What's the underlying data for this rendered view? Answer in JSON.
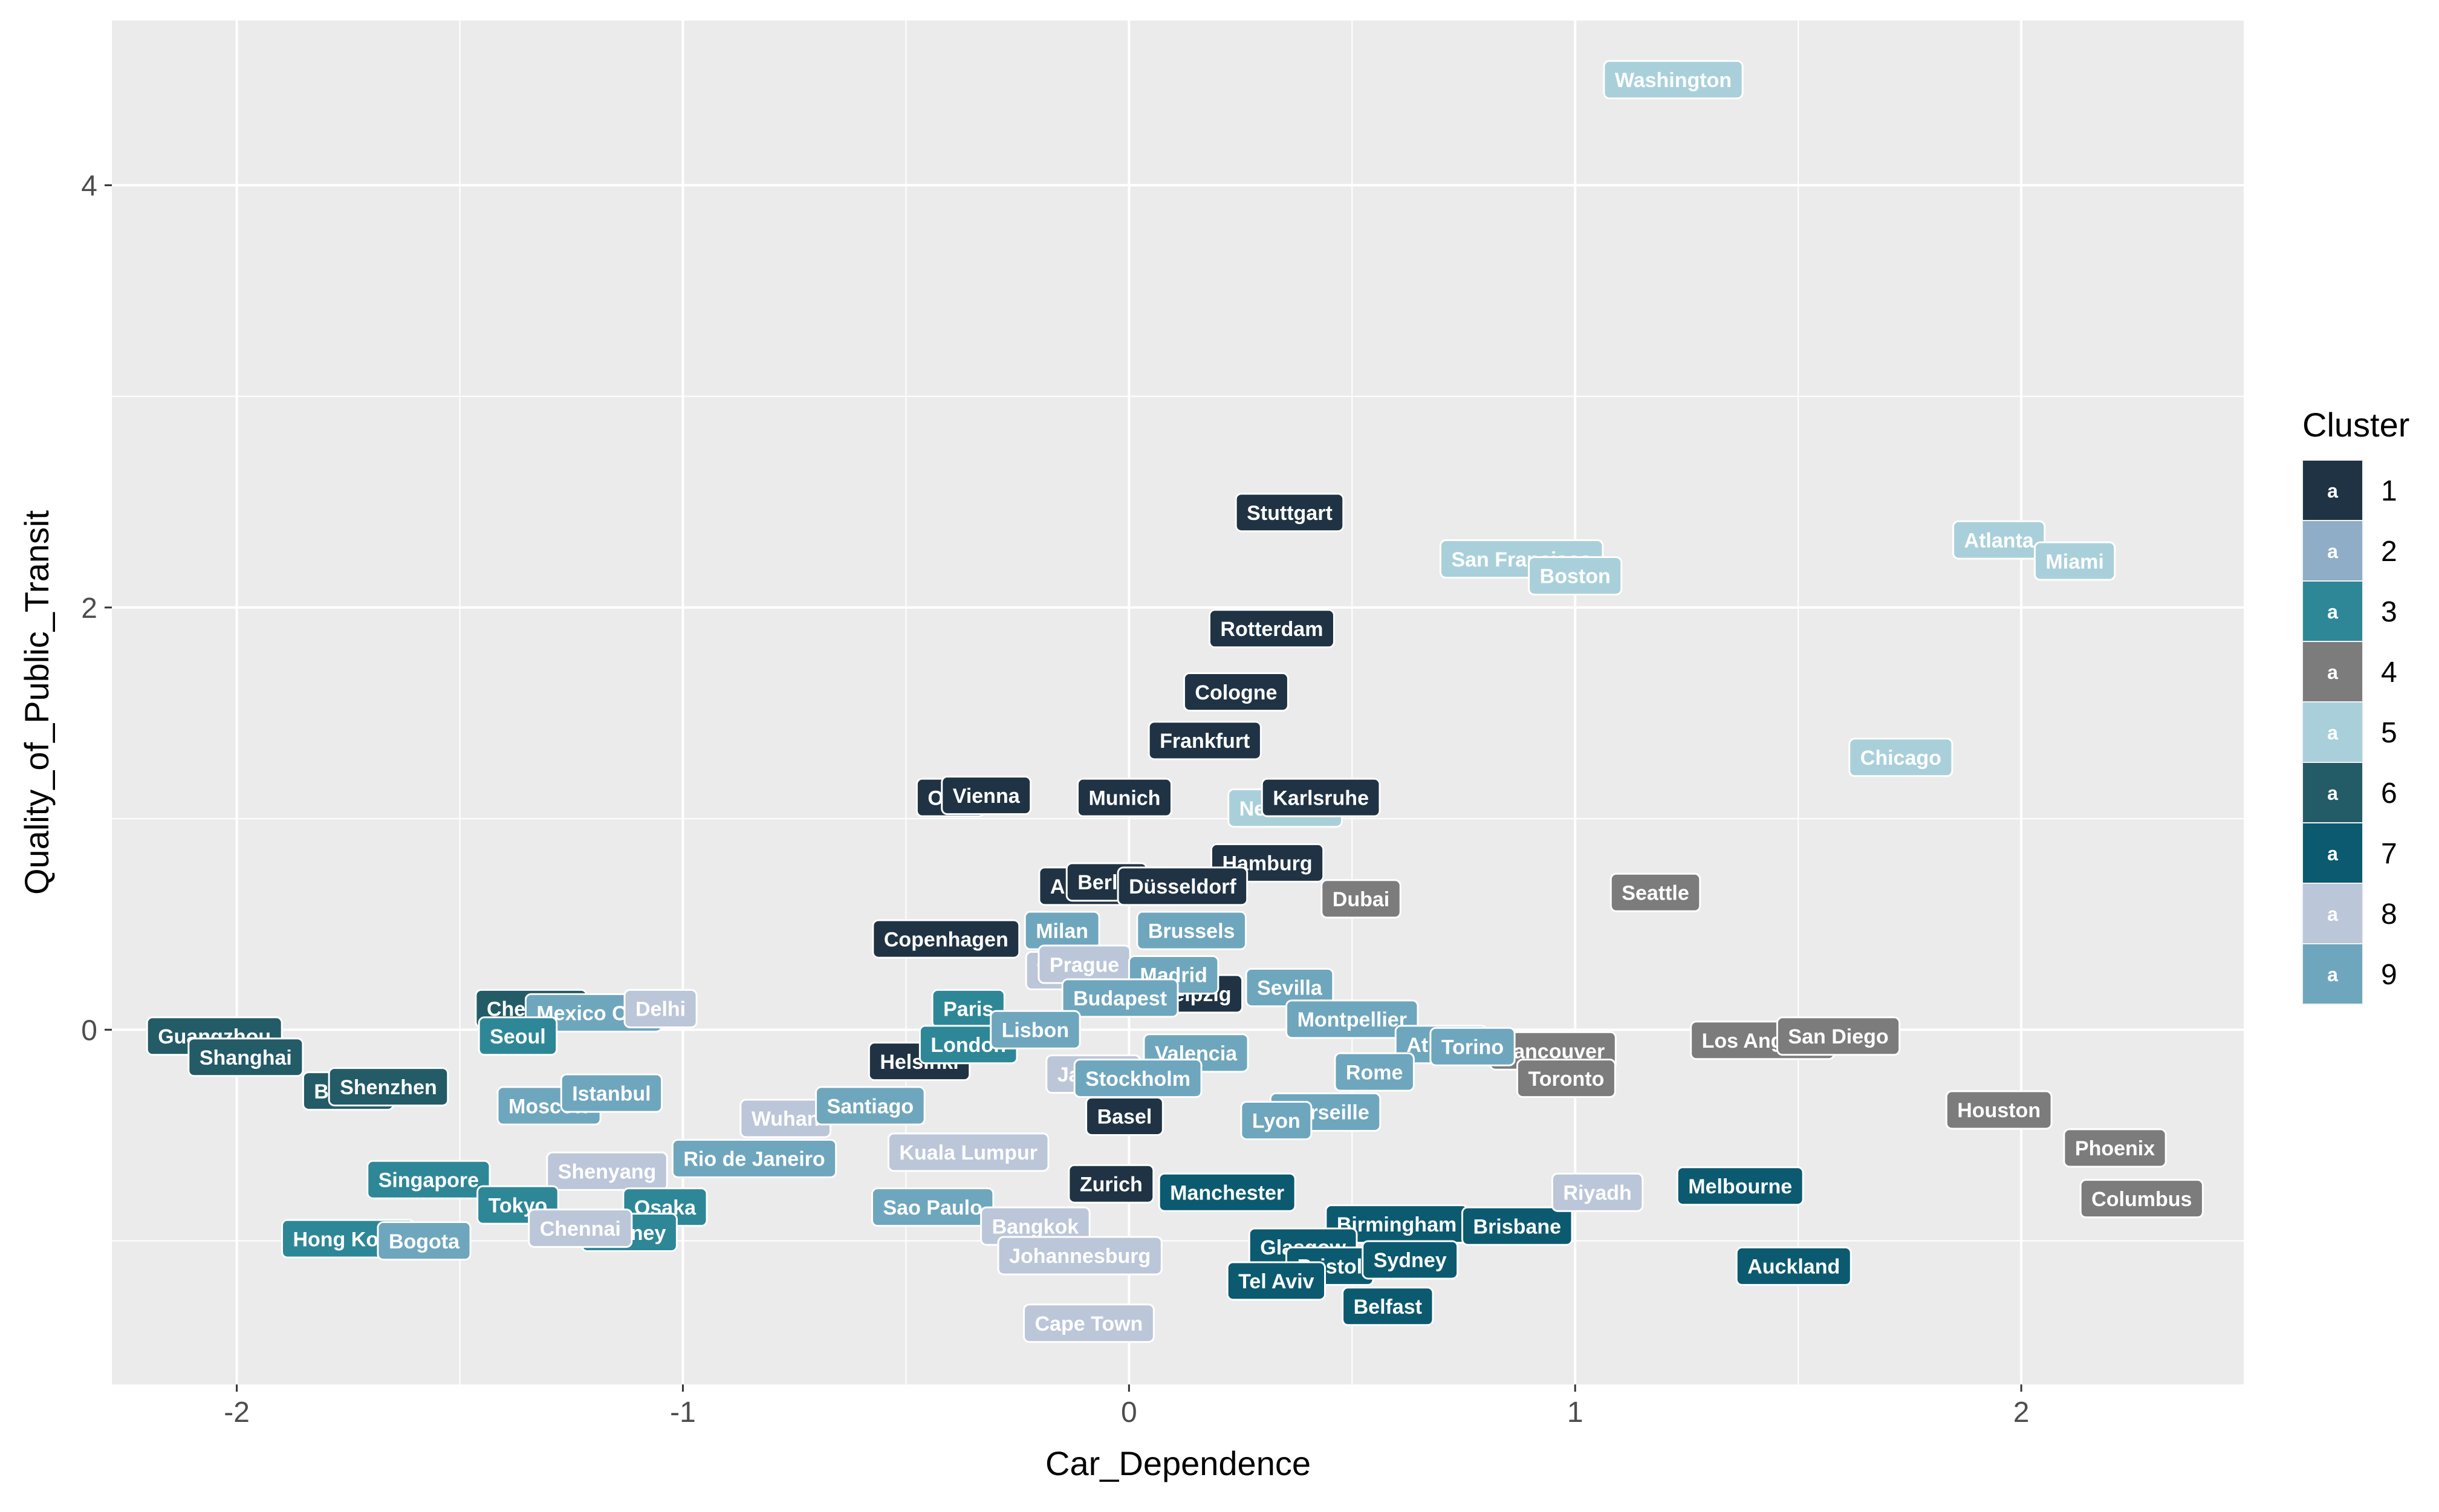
{
  "chart_data": {
    "type": "scatter",
    "xlabel": "Car_Dependence",
    "ylabel": "Quality_of_Public_Transit",
    "xlim": [
      -2.28,
      2.5
    ],
    "ylim": [
      -1.68,
      4.78
    ],
    "x_ticks": [
      -2,
      -1,
      0,
      1,
      2
    ],
    "y_ticks": [
      0,
      2,
      4
    ],
    "grid": true,
    "legend": {
      "title": "Cluster",
      "position": "right",
      "key_glyph": "a",
      "entries": [
        {
          "label": "1",
          "color": "#1f3344"
        },
        {
          "label": "2",
          "color": "#8fadc6"
        },
        {
          "label": "3",
          "color": "#2e8797"
        },
        {
          "label": "4",
          "color": "#7c7c7c"
        },
        {
          "label": "5",
          "color": "#a9d0da"
        },
        {
          "label": "6",
          "color": "#235b66"
        },
        {
          "label": "7",
          "color": "#0b5a70"
        },
        {
          "label": "8",
          "color": "#bcc6d9"
        },
        {
          "label": "9",
          "color": "#6ea6bd"
        }
      ]
    },
    "points": [
      {
        "label": "Washington",
        "x": 1.22,
        "y": 4.5,
        "cluster": 5
      },
      {
        "label": "Atlanta",
        "x": 1.95,
        "y": 2.32,
        "cluster": 5
      },
      {
        "label": "Miami",
        "x": 2.12,
        "y": 2.22,
        "cluster": 5
      },
      {
        "label": "San Francisco",
        "x": 0.88,
        "y": 2.23,
        "cluster": 5
      },
      {
        "label": "Boston",
        "x": 1.0,
        "y": 2.15,
        "cluster": 5
      },
      {
        "label": "Chicago",
        "x": 1.73,
        "y": 1.29,
        "cluster": 5
      },
      {
        "label": "New York",
        "x": 0.35,
        "y": 1.05,
        "cluster": 5
      },
      {
        "label": "Stuttgart",
        "x": 0.36,
        "y": 2.45,
        "cluster": 1
      },
      {
        "label": "Rotterdam",
        "x": 0.32,
        "y": 1.9,
        "cluster": 1
      },
      {
        "label": "Cologne",
        "x": 0.24,
        "y": 1.6,
        "cluster": 1
      },
      {
        "label": "Frankfurt",
        "x": 0.17,
        "y": 1.37,
        "cluster": 1
      },
      {
        "label": "Munich",
        "x": -0.01,
        "y": 1.1,
        "cluster": 1
      },
      {
        "label": "Karlsruhe",
        "x": 0.43,
        "y": 1.1,
        "cluster": 1
      },
      {
        "label": "Oslo",
        "x": -0.4,
        "y": 1.1,
        "cluster": 1
      },
      {
        "label": "Vienna",
        "x": -0.32,
        "y": 1.11,
        "cluster": 1
      },
      {
        "label": "Hamburg",
        "x": 0.31,
        "y": 0.79,
        "cluster": 1
      },
      {
        "label": "Amsterdam",
        "x": -0.05,
        "y": 0.68,
        "cluster": 1
      },
      {
        "label": "Berlin",
        "x": -0.05,
        "y": 0.7,
        "cluster": 1
      },
      {
        "label": "Düsseldorf",
        "x": 0.12,
        "y": 0.68,
        "cluster": 1
      },
      {
        "label": "Copenhagen",
        "x": -0.41,
        "y": 0.43,
        "cluster": 1
      },
      {
        "label": "Leipzig",
        "x": 0.15,
        "y": 0.17,
        "cluster": 1
      },
      {
        "label": "Helsinki",
        "x": -0.47,
        "y": -0.15,
        "cluster": 1
      },
      {
        "label": "Basel",
        "x": -0.01,
        "y": -0.41,
        "cluster": 1
      },
      {
        "label": "Zurich",
        "x": -0.04,
        "y": -0.73,
        "cluster": 1
      },
      {
        "label": "Dubai",
        "x": 0.52,
        "y": 0.62,
        "cluster": 4
      },
      {
        "label": "Seattle",
        "x": 1.18,
        "y": 0.65,
        "cluster": 4
      },
      {
        "label": "Vancouver",
        "x": 0.95,
        "y": -0.1,
        "cluster": 4
      },
      {
        "label": "Toronto",
        "x": 0.98,
        "y": -0.23,
        "cluster": 4
      },
      {
        "label": "Los Angeles",
        "x": 1.42,
        "y": -0.05,
        "cluster": 4
      },
      {
        "label": "San Diego",
        "x": 1.59,
        "y": -0.03,
        "cluster": 4
      },
      {
        "label": "Houston",
        "x": 1.95,
        "y": -0.38,
        "cluster": 4
      },
      {
        "label": "Phoenix",
        "x": 2.21,
        "y": -0.56,
        "cluster": 4
      },
      {
        "label": "Columbus",
        "x": 2.27,
        "y": -0.8,
        "cluster": 4
      },
      {
        "label": "Milan",
        "x": -0.15,
        "y": 0.47,
        "cluster": 9
      },
      {
        "label": "Brussels",
        "x": 0.14,
        "y": 0.47,
        "cluster": 9
      },
      {
        "label": "Warsaw",
        "x": -0.12,
        "y": 0.28,
        "cluster": 8
      },
      {
        "label": "Prague",
        "x": -0.1,
        "y": 0.31,
        "cluster": 8
      },
      {
        "label": "Madrid",
        "x": 0.1,
        "y": 0.26,
        "cluster": 9
      },
      {
        "label": "Budapest",
        "x": -0.02,
        "y": 0.15,
        "cluster": 9
      },
      {
        "label": "Sevilla",
        "x": 0.36,
        "y": 0.2,
        "cluster": 9
      },
      {
        "label": "Montpellier",
        "x": 0.5,
        "y": 0.05,
        "cluster": 9
      },
      {
        "label": "Paris",
        "x": -0.36,
        "y": 0.1,
        "cluster": 3
      },
      {
        "label": "London",
        "x": -0.36,
        "y": -0.07,
        "cluster": 3
      },
      {
        "label": "Lisbon",
        "x": -0.21,
        "y": 0.0,
        "cluster": 9
      },
      {
        "label": "Valencia",
        "x": 0.15,
        "y": -0.11,
        "cluster": 9
      },
      {
        "label": "Jakarta",
        "x": -0.08,
        "y": -0.21,
        "cluster": 8
      },
      {
        "label": "Stockholm",
        "x": 0.02,
        "y": -0.23,
        "cluster": 9
      },
      {
        "label": "Athens",
        "x": 0.7,
        "y": -0.07,
        "cluster": 9
      },
      {
        "label": "Torino",
        "x": 0.77,
        "y": -0.08,
        "cluster": 9
      },
      {
        "label": "Rome",
        "x": 0.55,
        "y": -0.2,
        "cluster": 9
      },
      {
        "label": "Marseille",
        "x": 0.44,
        "y": -0.39,
        "cluster": 9
      },
      {
        "label": "Lyon",
        "x": 0.33,
        "y": -0.43,
        "cluster": 9
      },
      {
        "label": "Guangzhou",
        "x": -2.05,
        "y": -0.03,
        "cluster": 6
      },
      {
        "label": "Shanghai",
        "x": -1.98,
        "y": -0.13,
        "cluster": 6
      },
      {
        "label": "Beijing",
        "x": -1.75,
        "y": -0.29,
        "cluster": 6
      },
      {
        "label": "Shenzhen",
        "x": -1.66,
        "y": -0.27,
        "cluster": 6
      },
      {
        "label": "Chengdu",
        "x": -1.34,
        "y": 0.1,
        "cluster": 6
      },
      {
        "label": "Mexico City",
        "x": -1.2,
        "y": 0.08,
        "cluster": 9
      },
      {
        "label": "Delhi",
        "x": -1.05,
        "y": 0.1,
        "cluster": 8
      },
      {
        "label": "Seoul",
        "x": -1.37,
        "y": -0.03,
        "cluster": 3
      },
      {
        "label": "Moscow",
        "x": -1.3,
        "y": -0.36,
        "cluster": 9
      },
      {
        "label": "Istanbul",
        "x": -1.16,
        "y": -0.3,
        "cluster": 9
      },
      {
        "label": "Wuhan",
        "x": -0.77,
        "y": -0.42,
        "cluster": 8
      },
      {
        "label": "Santiago",
        "x": -0.58,
        "y": -0.36,
        "cluster": 9
      },
      {
        "label": "Singapore",
        "x": -1.57,
        "y": -0.71,
        "cluster": 3
      },
      {
        "label": "Shenyang",
        "x": -1.17,
        "y": -0.67,
        "cluster": 8
      },
      {
        "label": "Rio de Janeiro",
        "x": -0.84,
        "y": -0.61,
        "cluster": 9
      },
      {
        "label": "Kuala Lumpur",
        "x": -0.36,
        "y": -0.58,
        "cluster": 8
      },
      {
        "label": "Tokyo",
        "x": -1.37,
        "y": -0.83,
        "cluster": 3
      },
      {
        "label": "Osaka",
        "x": -1.04,
        "y": -0.84,
        "cluster": 3
      },
      {
        "label": "Sydney",
        "x": -1.12,
        "y": -0.96,
        "cluster": 3
      },
      {
        "label": "Chennai",
        "x": -1.23,
        "y": -0.94,
        "cluster": 8
      },
      {
        "label": "Hong Kong",
        "x": -1.75,
        "y": -0.99,
        "cluster": 3
      },
      {
        "label": "Bogota",
        "x": -1.58,
        "y": -1.0,
        "cluster": 9
      },
      {
        "label": "Sao Paulo",
        "x": -0.44,
        "y": -0.84,
        "cluster": 9
      },
      {
        "label": "Bangkok",
        "x": -0.21,
        "y": -0.93,
        "cluster": 8
      },
      {
        "label": "Johannesburg",
        "x": -0.11,
        "y": -1.07,
        "cluster": 8
      },
      {
        "label": "Cape Town",
        "x": -0.09,
        "y": -1.39,
        "cluster": 8
      },
      {
        "label": "Manchester",
        "x": 0.22,
        "y": -0.77,
        "cluster": 7
      },
      {
        "label": "Birmingham",
        "x": 0.6,
        "y": -0.92,
        "cluster": 7
      },
      {
        "label": "Brisbane",
        "x": 0.87,
        "y": -0.93,
        "cluster": 7
      },
      {
        "label": "Glasgow",
        "x": 0.39,
        "y": -1.03,
        "cluster": 7
      },
      {
        "label": "Bristol",
        "x": 0.45,
        "y": -1.12,
        "cluster": 7
      },
      {
        "label": "Sydney",
        "x": 0.63,
        "y": -1.09,
        "cluster": 7
      },
      {
        "label": "Tel Aviv",
        "x": 0.33,
        "y": -1.19,
        "cluster": 7
      },
      {
        "label": "Belfast",
        "x": 0.58,
        "y": -1.31,
        "cluster": 7
      },
      {
        "label": "Riyadh",
        "x": 1.05,
        "y": -0.77,
        "cluster": 8
      },
      {
        "label": "Melbourne",
        "x": 1.37,
        "y": -0.74,
        "cluster": 7
      },
      {
        "label": "Auckland",
        "x": 1.49,
        "y": -1.12,
        "cluster": 7
      }
    ]
  }
}
